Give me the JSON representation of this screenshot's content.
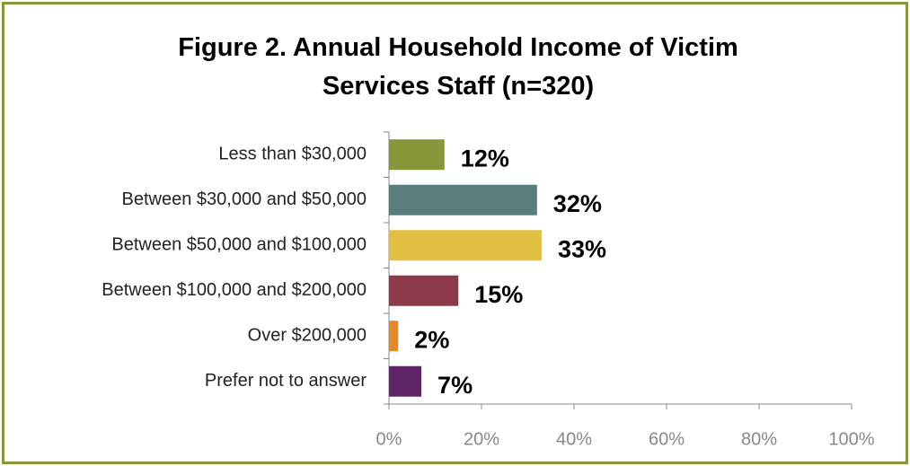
{
  "chart_data": {
    "type": "bar",
    "orientation": "horizontal",
    "title": "Figure 2. Annual Household Income of Victim Services Staff (n=320)",
    "categories": [
      "Less than $30,000",
      "Between $30,000 and $50,000",
      "Between $50,000 and $100,000",
      "Between $100,000 and $200,000",
      "Over $200,000",
      "Prefer not to answer"
    ],
    "values": [
      12,
      32,
      33,
      15,
      2,
      7
    ],
    "value_labels": [
      "12%",
      "32%",
      "33%",
      "15%",
      "2%",
      "7%"
    ],
    "colors": [
      "#8a963a",
      "#5a7d7e",
      "#e2c044",
      "#8f3a4a",
      "#e08a2e",
      "#5e2465"
    ],
    "xlim": [
      0,
      100
    ],
    "xticks": [
      {
        "value": 0,
        "label": "0%"
      },
      {
        "value": 20,
        "label": "20%"
      },
      {
        "value": 40,
        "label": "40%"
      },
      {
        "value": 60,
        "label": "60%"
      },
      {
        "value": 80,
        "label": "80%"
      },
      {
        "value": 100,
        "label": "100%"
      }
    ],
    "grid": false
  }
}
